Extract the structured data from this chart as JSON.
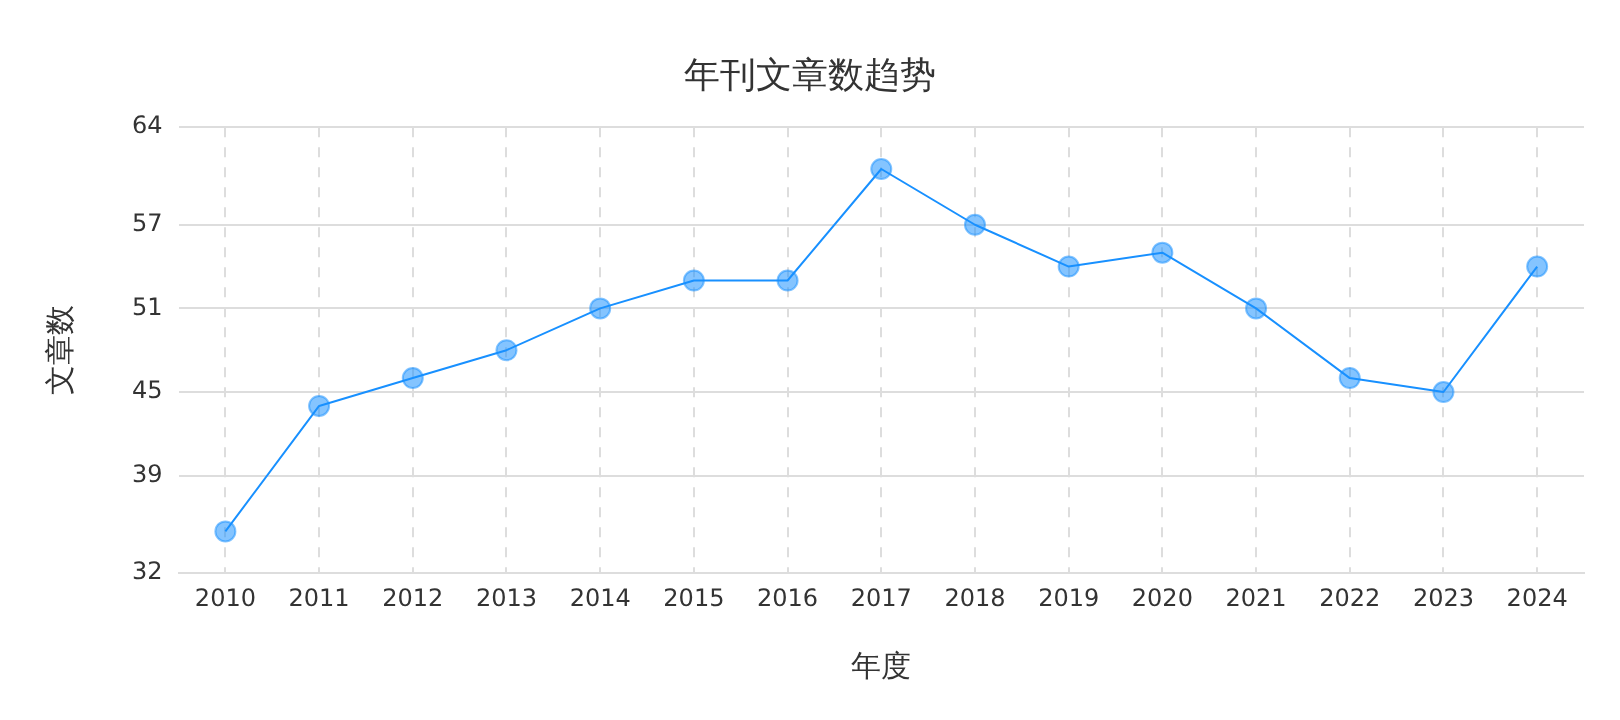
{
  "chart_data": {
    "type": "line",
    "title": "年刊文章数趋势",
    "xlabel": "年度",
    "ylabel": "文章数",
    "categories": [
      "2010",
      "2011",
      "2012",
      "2013",
      "2014",
      "2015",
      "2016",
      "2017",
      "2018",
      "2019",
      "2020",
      "2021",
      "2022",
      "2023",
      "2024"
    ],
    "series": [
      {
        "color": "#1890ff",
        "values": [
          35,
          44,
          46,
          48,
          51,
          53,
          53,
          61,
          57,
          54,
          55,
          51,
          46,
          45,
          54
        ]
      }
    ],
    "ylim": [
      32,
      64
    ],
    "yticks": [
      32,
      39,
      45,
      51,
      57,
      64
    ],
    "grid": true,
    "legend": false,
    "marker": "circle",
    "line_style": "solid"
  }
}
